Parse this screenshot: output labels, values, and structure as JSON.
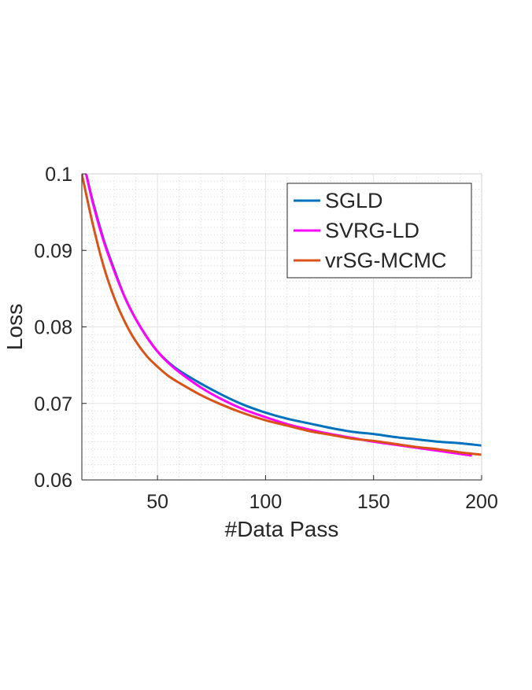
{
  "chart_data": {
    "type": "line",
    "title": "",
    "xlabel": "#Data Pass",
    "ylabel": "Loss",
    "xlim": [
      15,
      200
    ],
    "ylim": [
      0.06,
      0.1
    ],
    "xticks": [
      50,
      100,
      150,
      200
    ],
    "xtick_labels": [
      "50",
      "100",
      "150",
      "200"
    ],
    "yticks": [
      0.06,
      0.07,
      0.08,
      0.09,
      0.1
    ],
    "ytick_labels": [
      "0.06",
      "0.07",
      "0.08",
      "0.09",
      "0.1"
    ],
    "grid": true,
    "minor_grid": true,
    "legend_position": "top-right",
    "series": [
      {
        "name": "SGLD",
        "color": "#0072BD",
        "x": [
          17,
          20,
          25,
          30,
          35,
          40,
          45,
          50,
          55,
          60,
          70,
          80,
          90,
          100,
          110,
          120,
          130,
          140,
          150,
          160,
          170,
          180,
          190,
          200
        ],
        "y": [
          0.1,
          0.0965,
          0.0915,
          0.0875,
          0.0838,
          0.081,
          0.0787,
          0.0768,
          0.0754,
          0.0743,
          0.0726,
          0.0711,
          0.0698,
          0.0688,
          0.068,
          0.0674,
          0.0668,
          0.0663,
          0.066,
          0.0656,
          0.0653,
          0.065,
          0.0648,
          0.0645
        ]
      },
      {
        "name": "SVRG-LD",
        "color": "#FF00FF",
        "x": [
          17,
          20,
          25,
          30,
          35,
          40,
          45,
          50,
          55,
          60,
          70,
          80,
          90,
          100,
          110,
          120,
          130,
          140,
          150,
          160,
          170,
          180,
          195
        ],
        "y": [
          0.1,
          0.0963,
          0.0913,
          0.0873,
          0.0838,
          0.081,
          0.0787,
          0.0768,
          0.0753,
          0.0741,
          0.0721,
          0.0705,
          0.0692,
          0.0682,
          0.0673,
          0.0666,
          0.066,
          0.0655,
          0.065,
          0.0646,
          0.0642,
          0.0638,
          0.0632
        ]
      },
      {
        "name": "vrSG-MCMC",
        "color": "#D95319",
        "x": [
          15,
          20,
          25,
          30,
          35,
          40,
          45,
          50,
          55,
          60,
          70,
          80,
          90,
          100,
          110,
          120,
          130,
          140,
          150,
          160,
          170,
          180,
          190,
          200
        ],
        "y": [
          0.1,
          0.0935,
          0.088,
          0.0838,
          0.0806,
          0.0781,
          0.0762,
          0.0748,
          0.0736,
          0.0727,
          0.0711,
          0.0698,
          0.0687,
          0.0678,
          0.0671,
          0.0664,
          0.0659,
          0.0654,
          0.0651,
          0.0647,
          0.0643,
          0.064,
          0.0636,
          0.0633
        ]
      }
    ]
  }
}
